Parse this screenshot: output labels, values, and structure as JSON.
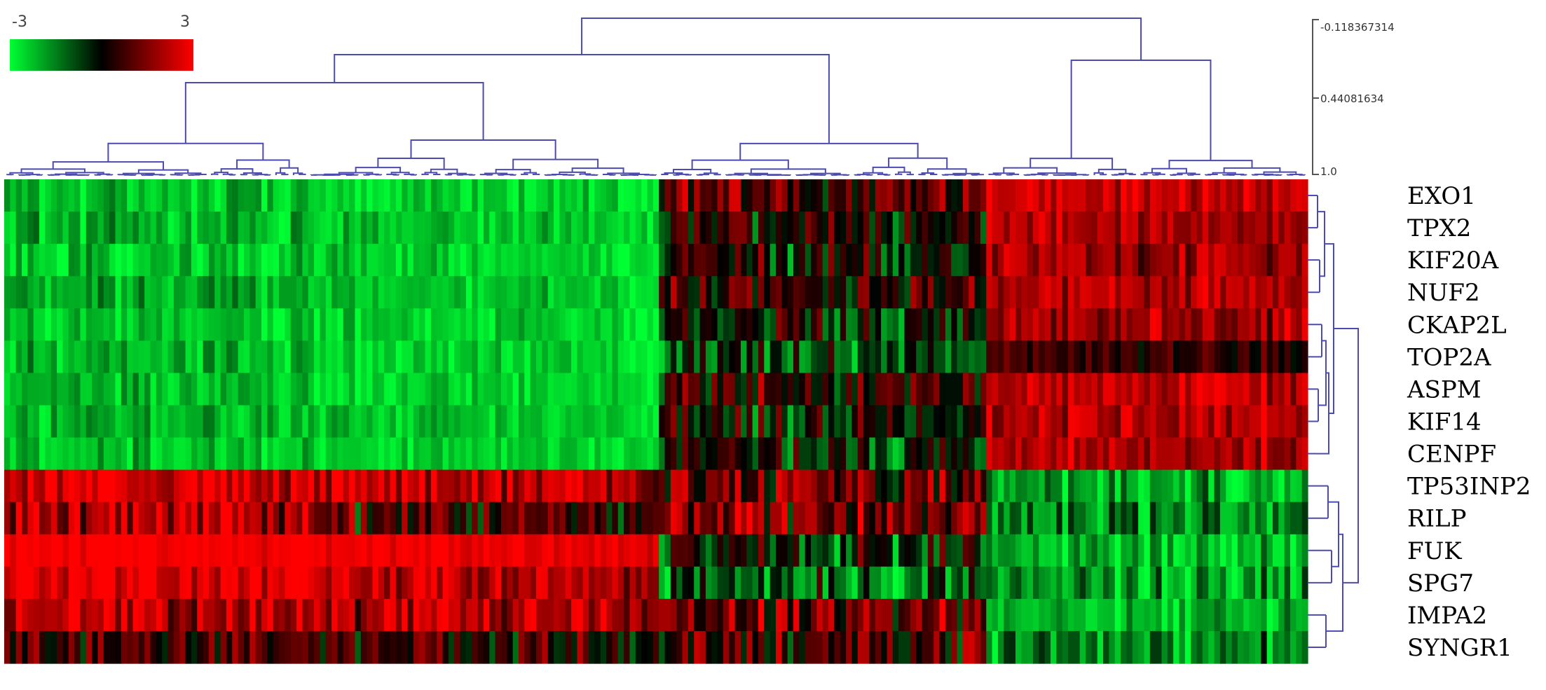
{
  "chart_data": {
    "type": "heatmap",
    "title": "",
    "xlabel": "",
    "ylabel": "",
    "color_scale": {
      "min": -3,
      "max": 3,
      "min_label": "-3",
      "max_label": "3",
      "colors": [
        "#00ff33",
        "#000000",
        "#ff0000"
      ]
    },
    "dendrogram_scale": {
      "tick_labels": [
        "-0.118367314",
        "0.44081634",
        "1.0"
      ],
      "values": [
        -0.118367314,
        0.44081634,
        1.0
      ],
      "line_color": "#4b4bb0"
    },
    "rows": [
      "EXO1",
      "TPX2",
      "KIF20A",
      "NUF2",
      "CKAP2L",
      "TOP2A",
      "ASPM",
      "KIF14",
      "CENPF",
      "TP53INP2",
      "RILP",
      "FUK",
      "SPG7",
      "IMPA2",
      "SYNGR1"
    ],
    "column_clusters": [
      {
        "columns": 52,
        "values": [
          -2.3,
          -2.1,
          -2.4,
          -2.0,
          -2.4,
          -2.2,
          -2.3,
          -2.2,
          -2.3,
          2.4,
          2.0,
          2.9,
          2.6,
          2.2,
          0.6
        ],
        "spread": [
          1.7,
          1.7,
          1.7,
          1.7,
          1.7,
          1.7,
          1.7,
          1.7,
          1.7,
          3.2,
          3.2,
          0.9,
          2.0,
          3.2,
          2.8
        ]
      },
      {
        "columns": 60,
        "values": [
          -2.5,
          -2.3,
          -2.5,
          -2.4,
          -2.5,
          -2.5,
          -2.5,
          -2.4,
          -2.5,
          2.2,
          0.5,
          2.8,
          2.0,
          2.0,
          0.3
        ],
        "spread": [
          1.3,
          1.3,
          1.3,
          1.3,
          1.3,
          1.3,
          1.3,
          1.3,
          1.3,
          3.0,
          3.4,
          1.0,
          2.4,
          2.8,
          3.2
        ]
      },
      {
        "columns": 56,
        "values": [
          0.8,
          0.2,
          -0.1,
          0.3,
          -0.3,
          -0.8,
          0.4,
          -0.1,
          -0.4,
          0.9,
          1.3,
          -0.5,
          -1.0,
          1.2,
          0.8
        ],
        "spread": [
          3.6,
          3.6,
          3.6,
          3.6,
          3.6,
          3.6,
          3.6,
          3.6,
          3.6,
          3.8,
          3.8,
          3.8,
          3.8,
          3.8,
          3.8
        ]
      },
      {
        "columns": 55,
        "values": [
          2.3,
          2.0,
          1.8,
          2.2,
          1.8,
          0.6,
          2.2,
          2.1,
          2.0,
          -2.0,
          -1.4,
          -2.2,
          -1.8,
          -2.1,
          -1.6
        ],
        "spread": [
          1.9,
          2.0,
          2.2,
          1.9,
          2.2,
          1.8,
          1.9,
          1.9,
          2.0,
          2.3,
          2.8,
          2.2,
          2.6,
          1.9,
          2.6
        ]
      }
    ]
  }
}
